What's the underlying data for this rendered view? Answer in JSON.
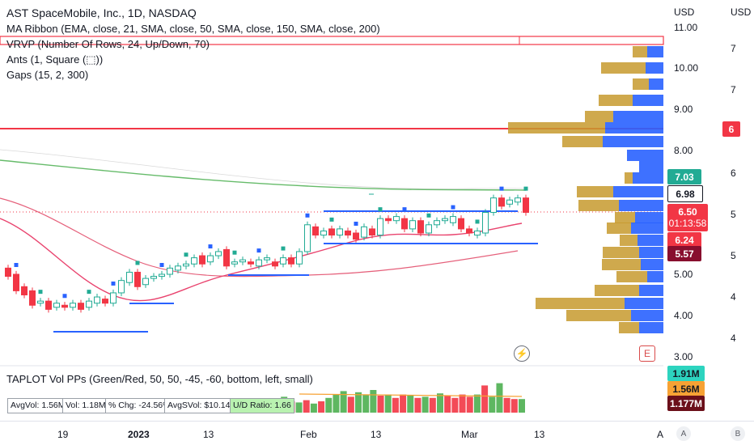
{
  "header": {
    "title": "AST SpaceMobile, Inc., 1D, NASDAQ",
    "indicators": [
      "MA Ribbon (EMA, close, 21, SMA, close, 50, SMA, close, 150, SMA, close, 200)",
      "VRVP (Number Of Rows, 24, Up/Down, 70)",
      "Ants (1, Square (⬚))",
      "Gaps (15, 2, 300)"
    ]
  },
  "price_axis": {
    "currency": "USD",
    "labels": [
      "11.00",
      "10.00",
      "9.00",
      "8.00",
      "5.00",
      "4.00",
      "3.00"
    ]
  },
  "secondary_axis": {
    "currency": "USD",
    "labels": [
      "7",
      "7",
      "6",
      "5",
      "5",
      "4",
      "4"
    ]
  },
  "price_tags": {
    "gap_level": "6",
    "ema_green": "7.03",
    "sma_white": "6.98",
    "last_price": "6.50",
    "countdown": "01:13:58",
    "ema_red": "6.24",
    "sma_dark": "5.57",
    "colors": {
      "green": "#22ab94",
      "red": "#f23645",
      "white": "#ffffff"
    }
  },
  "volume_panel": {
    "legend": "TAPLOT Vol PPs (Green/Red, 50, 50, -45, -60, bottom, left, small)",
    "stats": {
      "avg_vol": "AvgVol: 1.56M",
      "vol": "Vol: 1.18M",
      "pct_chg": "% Chg: -24.56%",
      "avg_dollar_vol": "AvgSVol: $10.14M",
      "ud_ratio": "U/D Ratio: 1.66"
    },
    "axis_tags": {
      "green": "1.91M",
      "orange": "1.56M",
      "dark_red": "1.177M"
    }
  },
  "time_axis": {
    "labels": [
      "19",
      "2023",
      "13",
      "Feb",
      "13",
      "Mar",
      "13",
      "A"
    ],
    "buttons": {
      "auto": "A",
      "log": "B"
    }
  },
  "icons": {
    "flash": "⚡",
    "earnings": "E"
  },
  "chart_data": {
    "type": "candlestick",
    "last_close": 6.5,
    "candles": [
      {
        "o": 5.15,
        "c": 4.95
      },
      {
        "o": 5.0,
        "c": 4.6
      },
      {
        "o": 4.7,
        "c": 4.5
      },
      {
        "o": 4.6,
        "c": 4.25
      },
      {
        "o": 4.3,
        "c": 4.35
      },
      {
        "o": 4.35,
        "c": 4.15
      },
      {
        "o": 4.2,
        "c": 4.3
      },
      {
        "o": 4.25,
        "c": 4.2
      },
      {
        "o": 4.2,
        "c": 4.3
      },
      {
        "o": 4.3,
        "c": 4.15
      },
      {
        "o": 4.2,
        "c": 4.35
      },
      {
        "o": 4.3,
        "c": 4.45
      },
      {
        "o": 4.4,
        "c": 4.3
      },
      {
        "o": 4.3,
        "c": 4.55
      },
      {
        "o": 4.55,
        "c": 4.85
      },
      {
        "o": 4.8,
        "c": 5.05
      },
      {
        "o": 5.05,
        "c": 4.7
      },
      {
        "o": 4.75,
        "c": 4.9
      },
      {
        "o": 4.9,
        "c": 4.95
      },
      {
        "o": 4.95,
        "c": 5.0
      },
      {
        "o": 5.0,
        "c": 5.15
      },
      {
        "o": 5.1,
        "c": 5.2
      },
      {
        "o": 5.2,
        "c": 5.25
      },
      {
        "o": 5.25,
        "c": 5.4
      },
      {
        "o": 5.45,
        "c": 5.25
      },
      {
        "o": 5.3,
        "c": 5.45
      },
      {
        "o": 5.45,
        "c": 5.55
      },
      {
        "o": 5.6,
        "c": 5.2
      },
      {
        "o": 5.25,
        "c": 5.3
      },
      {
        "o": 5.3,
        "c": 5.35
      },
      {
        "o": 5.3,
        "c": 5.25
      },
      {
        "o": 5.2,
        "c": 5.35
      },
      {
        "o": 5.35,
        "c": 5.4
      },
      {
        "o": 5.3,
        "c": 5.2
      },
      {
        "o": 5.25,
        "c": 5.4
      },
      {
        "o": 5.4,
        "c": 5.25
      },
      {
        "o": 5.25,
        "c": 5.55
      },
      {
        "o": 5.55,
        "c": 6.2
      },
      {
        "o": 6.15,
        "c": 5.95
      },
      {
        "o": 5.95,
        "c": 6.05
      },
      {
        "o": 6.1,
        "c": 5.95
      },
      {
        "o": 5.95,
        "c": 6.1
      },
      {
        "o": 6.05,
        "c": 5.95
      },
      {
        "o": 6.0,
        "c": 5.85
      },
      {
        "o": 5.9,
        "c": 6.15
      },
      {
        "o": 6.1,
        "c": 5.95
      },
      {
        "o": 5.95,
        "c": 6.35
      },
      {
        "o": 6.35,
        "c": 6.3
      },
      {
        "o": 6.3,
        "c": 6.4
      },
      {
        "o": 6.35,
        "c": 6.1
      },
      {
        "o": 6.1,
        "c": 6.3
      },
      {
        "o": 6.3,
        "c": 6.0
      },
      {
        "o": 6.0,
        "c": 6.2
      },
      {
        "o": 6.2,
        "c": 6.3
      },
      {
        "o": 6.3,
        "c": 6.35
      },
      {
        "o": 6.25,
        "c": 6.4
      },
      {
        "o": 6.35,
        "c": 6.1
      },
      {
        "o": 6.1,
        "c": 6.0
      },
      {
        "o": 5.95,
        "c": 6.05
      },
      {
        "o": 6.0,
        "c": 6.5
      },
      {
        "o": 6.5,
        "c": 6.85
      },
      {
        "o": 6.85,
        "c": 6.65
      },
      {
        "o": 6.7,
        "c": 6.8
      },
      {
        "o": 6.75,
        "c": 6.85
      },
      {
        "o": 6.85,
        "c": 6.5
      }
    ],
    "volume": [
      {
        "v": 1.2,
        "up": false
      },
      {
        "v": 1.4,
        "up": true
      },
      {
        "v": 1.0,
        "up": false
      },
      {
        "v": 0.9,
        "up": true
      },
      {
        "v": 1.1,
        "up": false
      },
      {
        "v": 0.8,
        "up": true
      },
      {
        "v": 1.0,
        "up": false
      },
      {
        "v": 1.3,
        "up": true
      },
      {
        "v": 1.6,
        "up": true
      },
      {
        "v": 1.9,
        "up": true
      },
      {
        "v": 1.4,
        "up": false
      },
      {
        "v": 1.8,
        "up": true
      },
      {
        "v": 1.6,
        "up": true
      },
      {
        "v": 2.0,
        "up": true
      },
      {
        "v": 1.5,
        "up": false
      },
      {
        "v": 1.6,
        "up": true
      },
      {
        "v": 1.3,
        "up": false
      },
      {
        "v": 1.6,
        "up": false
      },
      {
        "v": 1.5,
        "up": true
      },
      {
        "v": 1.3,
        "up": false
      },
      {
        "v": 1.4,
        "up": true
      },
      {
        "v": 1.3,
        "up": false
      },
      {
        "v": 1.7,
        "up": true
      },
      {
        "v": 1.5,
        "up": false
      },
      {
        "v": 1.3,
        "up": false
      },
      {
        "v": 1.6,
        "up": false
      },
      {
        "v": 1.4,
        "up": false
      },
      {
        "v": 1.6,
        "up": true
      },
      {
        "v": 2.4,
        "up": false
      },
      {
        "v": 1.4,
        "up": true
      },
      {
        "v": 2.6,
        "up": true
      },
      {
        "v": 1.3,
        "up": false
      },
      {
        "v": 1.2,
        "up": false
      },
      {
        "v": 1.2,
        "up": true
      }
    ],
    "levels": {
      "gap_upper": 10.7,
      "gap_lower": 10.55,
      "resistance": 8.5
    }
  }
}
